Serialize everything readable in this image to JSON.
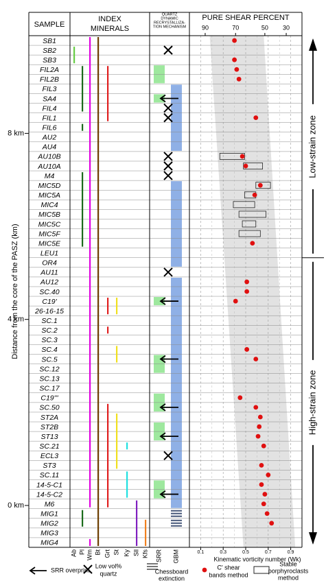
{
  "chart_data": {
    "type": "vorticity-log",
    "headers": {
      "sample": "SAMPLE",
      "minerals": [
        "INDEX",
        "MINERALS"
      ],
      "mechanism": [
        "QUARTZ",
        "DYNAMIC",
        "RECRYSTALLIZA-",
        "TION MECHANISM"
      ]
    },
    "samples": [
      "SB1",
      "SB2",
      "SB3",
      "FIL2A",
      "FIL2B",
      "FIL3",
      "SA4",
      "FIL4",
      "FIL1",
      "FIL6",
      "AU2",
      "AU4",
      "AU10B",
      "AU10A",
      "M4",
      "MIC5D",
      "MIC5A",
      "MIC4",
      "MIC5B",
      "MIC5C",
      "MIC5F",
      "MIC5E",
      "LEU1",
      "OR4",
      "AU11",
      "AU12",
      "SC.40",
      "C19'",
      "26-16-15",
      "SC.1",
      "SC.2",
      "SC.3",
      "SC.4",
      "SC.5",
      "SC.12",
      "SC.13",
      "SC.17",
      "C19'''",
      "SC.50",
      "ST2A",
      "ST2B",
      "ST13",
      "SC.21",
      "ECL3",
      "ST3",
      "SC.11",
      "14-5-C1",
      "14-5-C2",
      "M6",
      "MIG1",
      "MIG2",
      "MIG3",
      "MIG4"
    ],
    "ylabel": "Distance from the core of the PASZ (km)",
    "ylim": [
      -0.9,
      10.1
    ],
    "yticks": [
      {
        "value": 8,
        "label": "8 km"
      },
      {
        "value": 4,
        "label": "4 km"
      },
      {
        "value": 0,
        "label": "0 km"
      }
    ],
    "minerals": [
      {
        "name": "Ab",
        "color": "#66cc44",
        "ranges": [
          [
            1,
            2
          ]
        ]
      },
      {
        "name": "Pl",
        "color": "#1a6b1a",
        "ranges": [
          [
            3,
            7
          ],
          [
            9,
            9
          ],
          [
            14,
            21
          ],
          [
            49,
            50
          ]
        ]
      },
      {
        "name": "Wm",
        "color": "#e000e0",
        "ranges": [
          [
            0,
            48
          ],
          [
            52,
            52
          ]
        ]
      },
      {
        "name": "Bt",
        "color": "#6b3d00",
        "ranges": [
          [
            0,
            52
          ]
        ]
      },
      {
        "name": "Grt",
        "color": "#e02020",
        "ranges": [
          [
            3,
            8
          ],
          [
            27,
            28
          ],
          [
            30,
            30
          ],
          [
            38,
            48
          ]
        ]
      },
      {
        "name": "St",
        "color": "#f0e020",
        "ranges": [
          [
            27,
            28
          ],
          [
            32,
            33
          ],
          [
            39,
            44
          ]
        ]
      },
      {
        "name": "Ky",
        "color": "#20e0e0",
        "ranges": [
          [
            42,
            42
          ],
          [
            45,
            47
          ]
        ]
      },
      {
        "name": "Sll",
        "color": "#8020c0",
        "ranges": [
          [
            48,
            52
          ]
        ]
      },
      {
        "name": "Kfs",
        "color": "#f08020",
        "ranges": [
          [
            50,
            52
          ]
        ]
      }
    ],
    "mechanisms": [
      {
        "name": "SRR",
        "color": "#9ee89e",
        "ranges": [
          [
            3,
            4
          ],
          [
            6,
            6
          ],
          [
            27,
            27
          ],
          [
            33,
            34
          ],
          [
            37,
            38
          ],
          [
            40,
            41
          ],
          [
            46,
            47
          ]
        ]
      },
      {
        "name": "GBM",
        "color": "#8fb0e6",
        "ranges": [
          [
            5,
            11
          ],
          [
            15,
            23
          ],
          [
            25,
            48
          ]
        ]
      }
    ],
    "srr_overprint": [
      6,
      27,
      33,
      38,
      41,
      47
    ],
    "low_quartz": [
      1,
      7,
      8,
      12,
      13,
      14,
      24,
      43
    ],
    "chessboard": [
      49,
      50
    ],
    "top_axis": {
      "title": "PURE SHEAR PERCENT",
      "ticks": [
        {
          "value": 0.14,
          "label": "90"
        },
        {
          "value": 0.41,
          "label": "70"
        },
        {
          "value": 0.67,
          "label": "50"
        },
        {
          "value": 0.86,
          "label": "30"
        }
      ]
    },
    "xlabel": "Kinematic vorticity number (Wk)",
    "xlim": [
      0,
      1
    ],
    "xticks": [
      0.1,
      0.3,
      0.5,
      0.7,
      0.9
    ],
    "minor_xticks": [
      0.2,
      0.4,
      0.6,
      0.8
    ],
    "grid": true,
    "wk_band": {
      "top": [
        0.18,
        0.66
      ],
      "bottom": [
        0.48,
        0.94
      ],
      "color": "#e2e2e2"
    },
    "series": [
      {
        "name": [
          "C' shear",
          "bands method"
        ],
        "color": "#e01010",
        "values": [
          0.4,
          null,
          0.4,
          0.42,
          0.44,
          null,
          null,
          null,
          0.59,
          null,
          null,
          null,
          0.47,
          0.5,
          null,
          0.63,
          0.58,
          null,
          null,
          null,
          null,
          0.56,
          null,
          null,
          null,
          0.51,
          0.51,
          0.41,
          null,
          null,
          null,
          null,
          0.51,
          0.59,
          null,
          null,
          null,
          0.45,
          0.59,
          0.63,
          0.62,
          0.61,
          0.66,
          null,
          0.64,
          0.7,
          0.64,
          0.67,
          0.66,
          0.69,
          0.73,
          null,
          null
        ]
      }
    ],
    "porphyroclasts": {
      "name": [
        "Stable",
        "porphyroclasts",
        "method"
      ],
      "values": [
        null,
        null,
        null,
        null,
        null,
        null,
        null,
        null,
        null,
        null,
        null,
        null,
        [
          0.27,
          0.49
        ],
        [
          0.48,
          0.65
        ],
        null,
        [
          0.59,
          0.72
        ],
        [
          0.49,
          0.59
        ],
        [
          0.39,
          0.58
        ],
        [
          0.44,
          0.68
        ],
        [
          0.47,
          0.59
        ],
        [
          0.44,
          0.63
        ],
        null,
        null,
        null,
        null,
        null,
        null,
        null,
        null,
        null,
        null,
        null,
        null,
        null,
        null,
        null,
        null,
        null,
        null,
        null,
        null,
        null,
        null,
        null,
        null,
        null,
        null,
        null,
        null,
        null,
        null,
        null,
        null
      ]
    },
    "zones": [
      {
        "label": "Low-strain zone",
        "rows": [
          0,
          22
        ]
      },
      {
        "label": "High-strain zone",
        "rows": [
          23,
          52
        ]
      }
    ],
    "legend": {
      "srr_overprint": [
        "SRR overprint"
      ],
      "low_quartz": [
        "Low vol%",
        "quartz"
      ],
      "chessboard": [
        "Chessboard",
        "extinction"
      ]
    }
  }
}
